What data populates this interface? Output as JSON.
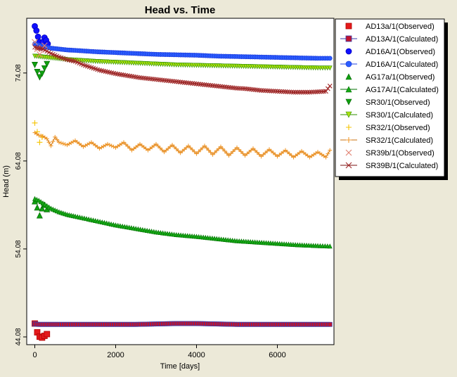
{
  "chart_data": {
    "type": "scatter",
    "title": "Head vs. Time",
    "xlabel": "Time  [days]",
    "ylabel": "Head (m)",
    "xlim": [
      -200,
      7400
    ],
    "ylim": [
      43.2,
      80.3
    ],
    "x_ticks": [
      {
        "value": 0,
        "label": "0"
      },
      {
        "value": 2000,
        "label": "2000"
      },
      {
        "value": 4000,
        "label": "4000"
      },
      {
        "value": 6000,
        "label": "6000"
      }
    ],
    "y_ticks": [
      {
        "value": 44.08,
        "label": "44.08"
      },
      {
        "value": 54.08,
        "label": "54.08"
      },
      {
        "value": 64.08,
        "label": "64.08"
      },
      {
        "value": 74.08,
        "label": "74.08"
      }
    ],
    "grid": false,
    "legend_position": "top-right",
    "series": [
      {
        "name": "AD13a/1(Observed)",
        "marker": "square",
        "color": "#e41a1c",
        "edge": "#b00000",
        "x": [
          0,
          60,
          120,
          180,
          240,
          300
        ],
        "y": [
          45.6,
          44.6,
          44.1,
          44.0,
          44.2,
          44.4
        ]
      },
      {
        "name": "AD13A/1(Calculated)",
        "marker": "square-line",
        "color": "#c0142e",
        "edge": "#3a3aa8",
        "x": [
          0,
          100,
          200,
          400,
          600,
          1000,
          1500,
          2000,
          2500,
          3000,
          3500,
          4000,
          4500,
          5000,
          5500,
          6000,
          6500,
          7000,
          7300
        ],
        "y": [
          45.55,
          45.5,
          45.5,
          45.5,
          45.5,
          45.5,
          45.5,
          45.5,
          45.5,
          45.55,
          45.6,
          45.6,
          45.55,
          45.5,
          45.5,
          45.5,
          45.5,
          45.5,
          45.5
        ]
      },
      {
        "name": "AD16A/1(Observed)",
        "marker": "circle",
        "color": "#1010ff",
        "edge": "#0000c0",
        "x": [
          0,
          40,
          80,
          120,
          160,
          200,
          240,
          280,
          320
        ],
        "y": [
          79.4,
          78.9,
          78.2,
          77.6,
          77.0,
          77.6,
          78.1,
          77.8,
          77.4
        ]
      },
      {
        "name": "AD16A/1(Calculated)",
        "marker": "circle-line",
        "color": "#2a5dff",
        "edge": "#2040e0",
        "x": [
          0,
          200,
          400,
          600,
          800,
          1000,
          1500,
          2000,
          2500,
          3000,
          3500,
          4000,
          4500,
          5000,
          5500,
          6000,
          6500,
          7000,
          7300
        ],
        "y": [
          77.4,
          77.1,
          76.9,
          76.8,
          76.7,
          76.65,
          76.5,
          76.4,
          76.3,
          76.2,
          76.15,
          76.1,
          76.0,
          75.95,
          75.9,
          75.85,
          75.8,
          75.75,
          75.75
        ]
      },
      {
        "name": "AG17a/1(Observed)",
        "marker": "triangle",
        "color": "#10a010",
        "edge": "#006000",
        "x": [
          0,
          60,
          120,
          180,
          240,
          300
        ],
        "y": [
          59.5,
          58.8,
          57.9,
          58.7,
          59.1,
          58.6
        ]
      },
      {
        "name": "AG17A/1(Calculated)",
        "marker": "triangle-line",
        "color": "#16a816",
        "edge": "#007000",
        "x": [
          0,
          100,
          200,
          300,
          400,
          600,
          800,
          1000,
          1500,
          2000,
          2500,
          3000,
          3500,
          4000,
          4500,
          5000,
          5500,
          6000,
          6500,
          7000,
          7300
        ],
        "y": [
          59.8,
          59.6,
          59.3,
          59.0,
          58.7,
          58.3,
          58.0,
          57.8,
          57.3,
          56.8,
          56.4,
          56.0,
          55.7,
          55.5,
          55.25,
          55.0,
          54.85,
          54.7,
          54.55,
          54.45,
          54.4
        ]
      },
      {
        "name": "SR30/1(Observed)",
        "marker": "triangle-down",
        "color": "#10a010",
        "edge": "#006000",
        "x": [
          0,
          60,
          120,
          180,
          240,
          300
        ],
        "y": [
          75.0,
          74.2,
          73.6,
          74.0,
          74.6,
          75.1
        ]
      },
      {
        "name": "SR30/1(Calculated)",
        "marker": "triangle-down-line",
        "color": "#a8e010",
        "edge": "#2f8f00",
        "x": [
          0,
          200,
          400,
          600,
          800,
          1000,
          1500,
          2000,
          2500,
          3000,
          3500,
          4000,
          4500,
          5000,
          5500,
          6000,
          6500,
          7000,
          7300
        ],
        "y": [
          76.0,
          75.9,
          75.8,
          75.7,
          75.6,
          75.55,
          75.4,
          75.3,
          75.2,
          75.1,
          75.0,
          74.95,
          74.9,
          74.85,
          74.8,
          74.75,
          74.7,
          74.65,
          74.65
        ]
      },
      {
        "name": "SR32/1(Observed)",
        "marker": "plus",
        "color": "#f5c400",
        "edge": "#d8a000",
        "x": [
          0,
          60,
          120,
          180
        ],
        "y": [
          68.4,
          67.4,
          66.2,
          66.8
        ]
      },
      {
        "name": "SR32/1(Calculated)",
        "marker": "plus-line",
        "color": "#f09a30",
        "edge": "#c97010",
        "x": [
          0,
          100,
          200,
          300,
          400,
          500,
          600,
          800,
          1000,
          1200,
          1400,
          1600,
          1800,
          2000,
          2200,
          2400,
          2600,
          2800,
          3000,
          3200,
          3400,
          3600,
          3800,
          4000,
          4200,
          4400,
          4600,
          4800,
          5000,
          5200,
          5400,
          5600,
          5800,
          6000,
          6200,
          6400,
          6600,
          6800,
          7000,
          7200,
          7300
        ],
        "y": [
          67.3,
          67.0,
          66.9,
          66.6,
          65.8,
          66.8,
          66.2,
          65.9,
          66.4,
          65.7,
          66.2,
          65.5,
          66.0,
          65.6,
          66.2,
          65.3,
          66.0,
          65.3,
          66.0,
          65.1,
          65.9,
          65.0,
          65.8,
          64.9,
          65.8,
          64.8,
          65.7,
          64.7,
          65.6,
          64.7,
          65.5,
          64.6,
          65.4,
          64.6,
          65.3,
          64.5,
          65.2,
          64.5,
          65.1,
          64.5,
          65.3
        ]
      },
      {
        "name": "SR39b/1(Observed)",
        "marker": "x",
        "color": "#e08070",
        "edge": "#d06050",
        "x": [
          0,
          60,
          120,
          180,
          240
        ],
        "y": [
          77.6,
          76.8,
          76.2,
          76.9,
          77.2
        ]
      },
      {
        "name": "SR39B/1(Calculated)",
        "marker": "x-line",
        "color": "#a02828",
        "edge": "#7a1010",
        "x": [
          0,
          200,
          400,
          600,
          800,
          1000,
          1200,
          1400,
          1600,
          1800,
          2000,
          2200,
          2400,
          2600,
          2800,
          3000,
          3200,
          3400,
          3600,
          3800,
          4000,
          4200,
          4400,
          4600,
          4800,
          5000,
          5200,
          5400,
          5600,
          5800,
          6000,
          6200,
          6400,
          6600,
          6800,
          7000,
          7200,
          7300
        ],
        "y": [
          77.0,
          76.8,
          76.3,
          75.9,
          75.6,
          75.4,
          75.0,
          74.7,
          74.4,
          74.2,
          74.0,
          73.85,
          73.7,
          73.55,
          73.45,
          73.35,
          73.25,
          73.15,
          73.05,
          72.95,
          72.85,
          72.75,
          72.65,
          72.55,
          72.45,
          72.35,
          72.3,
          72.2,
          72.1,
          72.05,
          72.0,
          71.95,
          71.9,
          71.9,
          71.9,
          71.95,
          72.0,
          72.6
        ]
      }
    ]
  }
}
